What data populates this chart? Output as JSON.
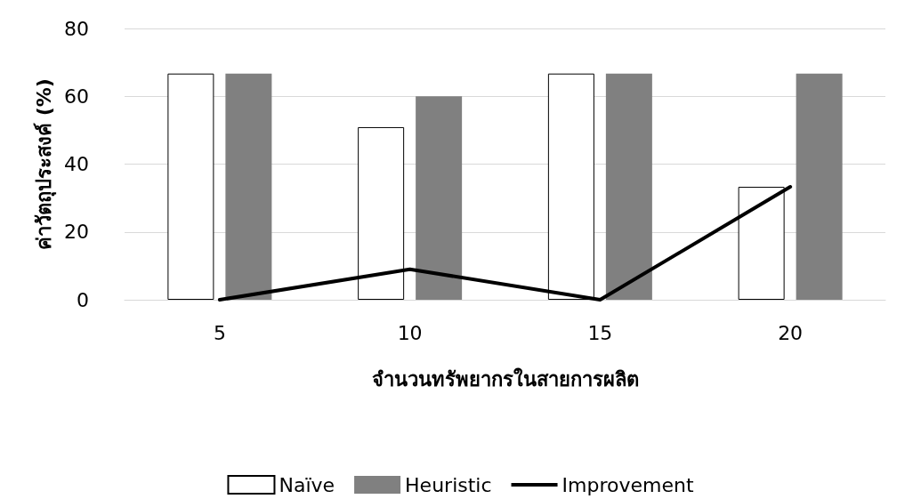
{
  "chart_data": {
    "type": "bar",
    "xlabel": "จำนวนทรัพยากรในสายการผลิต",
    "ylabel": "ค่าวัตถุประสงค์ (%)",
    "categories": [
      "5",
      "10",
      "15",
      "20"
    ],
    "series": [
      {
        "name": "Naïve",
        "color": "#ffffff",
        "values": [
          66.7,
          50.9,
          66.7,
          33.3
        ]
      },
      {
        "name": "Heuristic",
        "color": "#808080",
        "values": [
          66.7,
          60,
          66.7,
          66.7
        ]
      },
      {
        "name": "Improvement",
        "type": "line",
        "color": "#000000",
        "values": [
          0,
          9,
          0,
          33.3
        ]
      }
    ],
    "ylim": [
      0,
      80
    ],
    "yticks": [
      0,
      20,
      40,
      60,
      80
    ],
    "grid": "y",
    "legend": "bottom",
    "marker": "none",
    "line_style": "solid"
  }
}
